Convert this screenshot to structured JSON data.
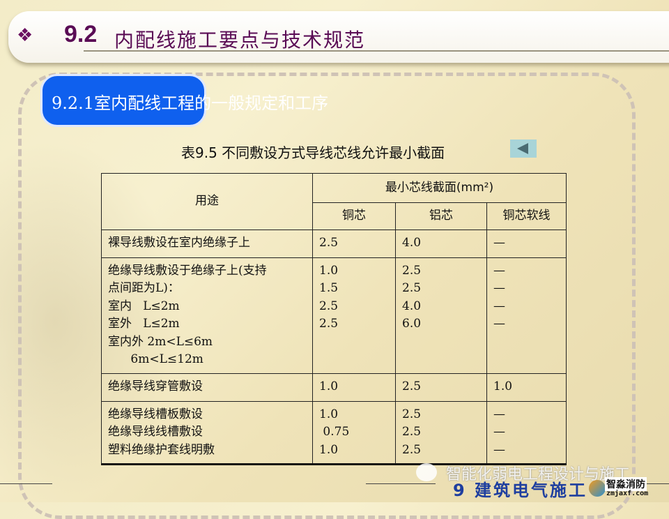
{
  "header": {
    "bullet": "❖",
    "number": "9.2",
    "title": "内配线施工要点与技术规范"
  },
  "section": {
    "title": "9.2.1室内配线工程的一般规定和工序"
  },
  "table_caption": "表9.5  不同敷设方式导线芯线允许最小截面",
  "back_icon": "triangle-left-icon",
  "table": {
    "head": {
      "usage": "用途",
      "group": "最小芯线截面(mm²)",
      "cols": [
        "铜芯",
        "铝芯",
        "铜芯软线"
      ]
    },
    "rows": [
      {
        "usage": "裸导线敷设在室内绝缘子上",
        "cu": "2.5",
        "al": "4.0",
        "soft": "—"
      },
      {
        "usage": "绝缘导线敷设于绝缘子上(支持\n点间距为L)：\n室内   L≤2m\n室外   L≤2m\n室内外 2m<L≤6m\n      6m<L≤12m",
        "cu": "1.0\n1.5\n2.5\n2.5",
        "al": "2.5\n2.5\n4.0\n6.0",
        "soft": "—\n—\n—\n—"
      },
      {
        "usage": "绝缘导线穿管敷设",
        "cu": "1.0",
        "al": "2.5",
        "soft": "1.0"
      },
      {
        "usage": "绝缘导线槽板敷设\n绝缘导线线槽敷设\n塑料绝缘护套线明敷",
        "cu": "1.0\n 0.75\n1.0",
        "al": "2.5\n2.5\n2.5",
        "soft": "—\n—\n—"
      }
    ]
  },
  "footer": {
    "chapter": "9 建筑电气施工",
    "watermark": "智能化弱电工程设计与施工",
    "logo_name": "智淼消防",
    "logo_url": "zmjaxf.com"
  }
}
